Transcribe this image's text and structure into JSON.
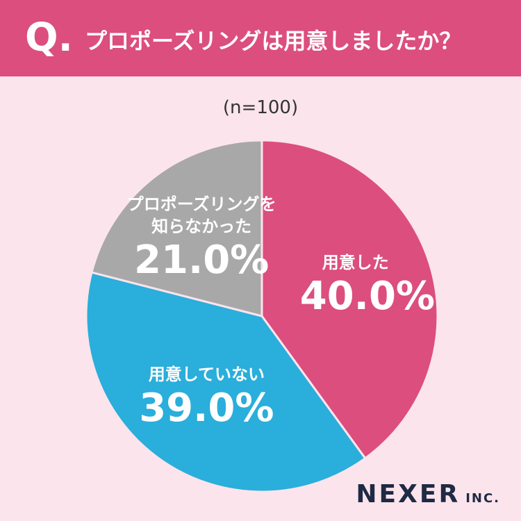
{
  "chart_data": {
    "type": "pie",
    "title_prefix": "Q.",
    "title": "プロポーズリングは用意しましたか？",
    "subtitle": "(n=100)",
    "categories": [
      "用意した",
      "用意していない",
      "プロポーズリングを知らなかった"
    ],
    "values": [
      40,
      39,
      21
    ],
    "value_labels": [
      "40.0%",
      "39.0%",
      "21.0%"
    ],
    "colors": [
      "#dc4e7d",
      "#2aaedb",
      "#a8a8a8"
    ],
    "logo": "NEXER",
    "logo_suffix": "INC."
  }
}
